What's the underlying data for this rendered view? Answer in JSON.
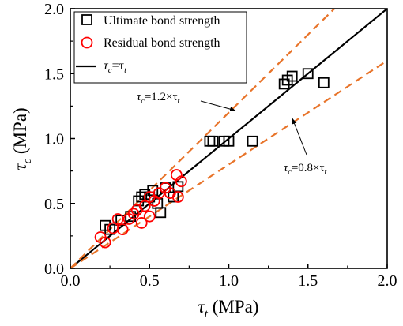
{
  "chart_data": {
    "type": "scatter",
    "xlabel_symbol": "τ",
    "xlabel_sub": "t",
    "xlabel_unit": " (MPa)",
    "ylabel_symbol": "τ",
    "ylabel_sub": "c",
    "ylabel_unit": " (MPa)",
    "xlim": [
      0,
      2.0
    ],
    "ylim": [
      0,
      2.0
    ],
    "xticks": [
      "0.0",
      "0.5",
      "1.0",
      "1.5",
      "2.0"
    ],
    "yticks": [
      "0.0",
      "0.5",
      "1.0",
      "1.5",
      "2.0"
    ],
    "legend_position": "top-left",
    "series": [
      {
        "name": "Ultimate bond strength",
        "marker": "square",
        "color": "#000000",
        "x": [
          0.22,
          0.25,
          0.32,
          0.38,
          0.43,
          0.45,
          0.47,
          0.5,
          0.52,
          0.55,
          0.57,
          0.6,
          0.65,
          0.68,
          0.88,
          0.9,
          0.97,
          1.0,
          1.15,
          1.35,
          1.37,
          1.4,
          1.5,
          1.6
        ],
        "y": [
          0.33,
          0.3,
          0.37,
          0.4,
          0.52,
          0.55,
          0.57,
          0.55,
          0.6,
          0.5,
          0.43,
          0.62,
          0.55,
          0.63,
          0.98,
          0.98,
          0.98,
          0.98,
          0.98,
          1.42,
          1.45,
          1.48,
          1.5,
          1.43
        ]
      },
      {
        "name": "Residual bond strength",
        "marker": "circle",
        "color": "#ff0000",
        "x": [
          0.19,
          0.22,
          0.27,
          0.3,
          0.33,
          0.37,
          0.4,
          0.42,
          0.45,
          0.47,
          0.5,
          0.5,
          0.53,
          0.56,
          0.6,
          0.63,
          0.67,
          0.68,
          0.7
        ],
        "y": [
          0.24,
          0.2,
          0.31,
          0.38,
          0.3,
          0.38,
          0.42,
          0.45,
          0.35,
          0.48,
          0.4,
          0.55,
          0.52,
          0.58,
          0.62,
          0.58,
          0.72,
          0.55,
          0.67
        ]
      }
    ],
    "lines": [
      {
        "name": "τ_c=τ_t",
        "slope": 1.0,
        "color": "#000000",
        "dash": false
      },
      {
        "name": "τ_c=1.2×τ_t",
        "slope": 1.2,
        "color": "#e8742a",
        "dash": true
      },
      {
        "name": "τ_c=0.8×τ_t",
        "slope": 0.8,
        "color": "#e8742a",
        "dash": true
      }
    ],
    "legend": {
      "ultimate": "Ultimate bond strength",
      "residual": "Residual bond strength",
      "line_sym": "τ",
      "line_sub1": "c",
      "line_eq": "=τ",
      "line_sub2": "t"
    },
    "annotations": {
      "upper_sym": "τ",
      "upper_sub": "c",
      "upper_eq": "=1.2×τ",
      "upper_sub2": "t",
      "lower_sym": "τ",
      "lower_sub": "c",
      "lower_eq": "=0.8×τ",
      "lower_sub2": "t"
    }
  }
}
